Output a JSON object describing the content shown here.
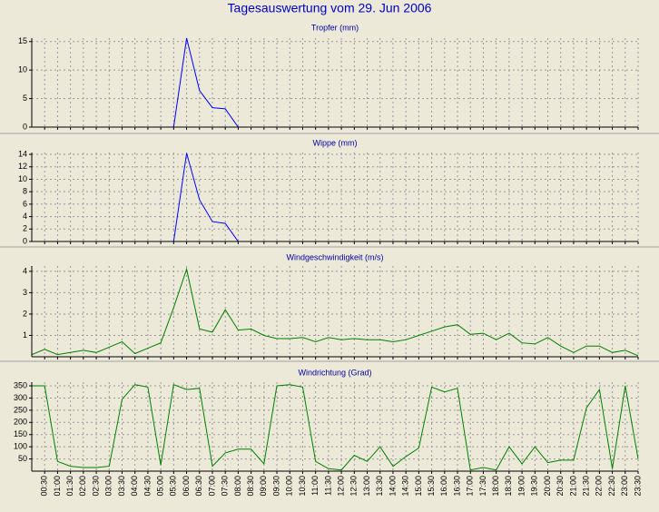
{
  "title": "Tagesauswertung vom 29. Jun 2006",
  "categories": [
    null,
    "00:30",
    "01:00",
    "01:30",
    "02:00",
    "02:30",
    "03:00",
    "03:30",
    "04:00",
    "04:30",
    "05:00",
    "05:30",
    "06:00",
    "06:30",
    "07:00",
    "07:30",
    "08:00",
    "08:30",
    "09:00",
    "09:30",
    "10:00",
    "10:30",
    "11:00",
    "11:30",
    "12:00",
    "12:30",
    "13:00",
    "13:30",
    "14:00",
    "14:30",
    "15:00",
    "15:30",
    "16:00",
    "16:30",
    "17:00",
    "17:30",
    "18:00",
    "18:30",
    "19:00",
    "19:30",
    "20:00",
    "20:30",
    "21:00",
    "21:30",
    "22:00",
    "22:30",
    "23:00",
    "23:30"
  ],
  "chart_data": [
    {
      "type": "line",
      "title": "Tropfer (mm)",
      "color": "#0000ff",
      "grid": true,
      "ylim": [
        0,
        15.6
      ],
      "yticks": [
        0,
        5,
        10,
        15
      ],
      "values": [
        0,
        0,
        0,
        0,
        0,
        0,
        0,
        0,
        0,
        0,
        0,
        0,
        15.6,
        6.4,
        3.4,
        3.2,
        0,
        0,
        0,
        0,
        0,
        0,
        0,
        0,
        0,
        0,
        0,
        0,
        0,
        0,
        0,
        0,
        0,
        0,
        0,
        0,
        0,
        0,
        0,
        0,
        0,
        0,
        0,
        0,
        0,
        0,
        0,
        0
      ]
    },
    {
      "type": "line",
      "title": "Wippe (mm)",
      "color": "#0000ff",
      "grid": true,
      "ylim": [
        0,
        14.3
      ],
      "yticks": [
        0,
        2,
        4,
        6,
        8,
        10,
        12,
        14
      ],
      "values": [
        0,
        0,
        0,
        0,
        0,
        0,
        0,
        0,
        0,
        0,
        0,
        0,
        14.2,
        6.7,
        3.2,
        2.9,
        0,
        0,
        0,
        0,
        0,
        0,
        0,
        0,
        0,
        0,
        0,
        0,
        0,
        0,
        0,
        0,
        0,
        0,
        0,
        0,
        0,
        0,
        0,
        0,
        0,
        0,
        0,
        0,
        0,
        0,
        0,
        0
      ]
    },
    {
      "type": "line",
      "title": "Windgeschwindigkeit (m/s)",
      "color": "#008000",
      "grid": true,
      "ylim": [
        0,
        4.25
      ],
      "yticks": [
        1,
        2,
        3,
        4
      ],
      "values": [
        0.1,
        0.35,
        0.1,
        0.2,
        0.3,
        0.2,
        0.45,
        0.7,
        0.15,
        0.4,
        0.65,
        2.3,
        4.1,
        1.3,
        1.15,
        2.2,
        1.25,
        1.3,
        1.0,
        0.85,
        0.85,
        0.9,
        0.7,
        0.9,
        0.8,
        0.85,
        0.8,
        0.8,
        0.7,
        0.8,
        1.0,
        1.2,
        1.4,
        1.5,
        1.05,
        1.1,
        0.8,
        1.1,
        0.65,
        0.6,
        0.9,
        0.5,
        0.2,
        0.5,
        0.5,
        0.2,
        0.3,
        0.05
      ]
    },
    {
      "type": "line",
      "title": "Windrichtung (Grad)",
      "color": "#008000",
      "grid": true,
      "ylim": [
        0,
        365
      ],
      "yticks": [
        50,
        100,
        150,
        200,
        250,
        300,
        350
      ],
      "values": [
        350,
        350,
        40,
        20,
        15,
        15,
        20,
        295,
        355,
        345,
        25,
        355,
        335,
        340,
        20,
        75,
        90,
        90,
        30,
        350,
        355,
        345,
        40,
        10,
        5,
        65,
        40,
        100,
        20,
        60,
        95,
        345,
        325,
        340,
        5,
        15,
        5,
        100,
        30,
        100,
        35,
        45,
        45,
        260,
        335,
        10,
        350,
        50
      ]
    }
  ]
}
